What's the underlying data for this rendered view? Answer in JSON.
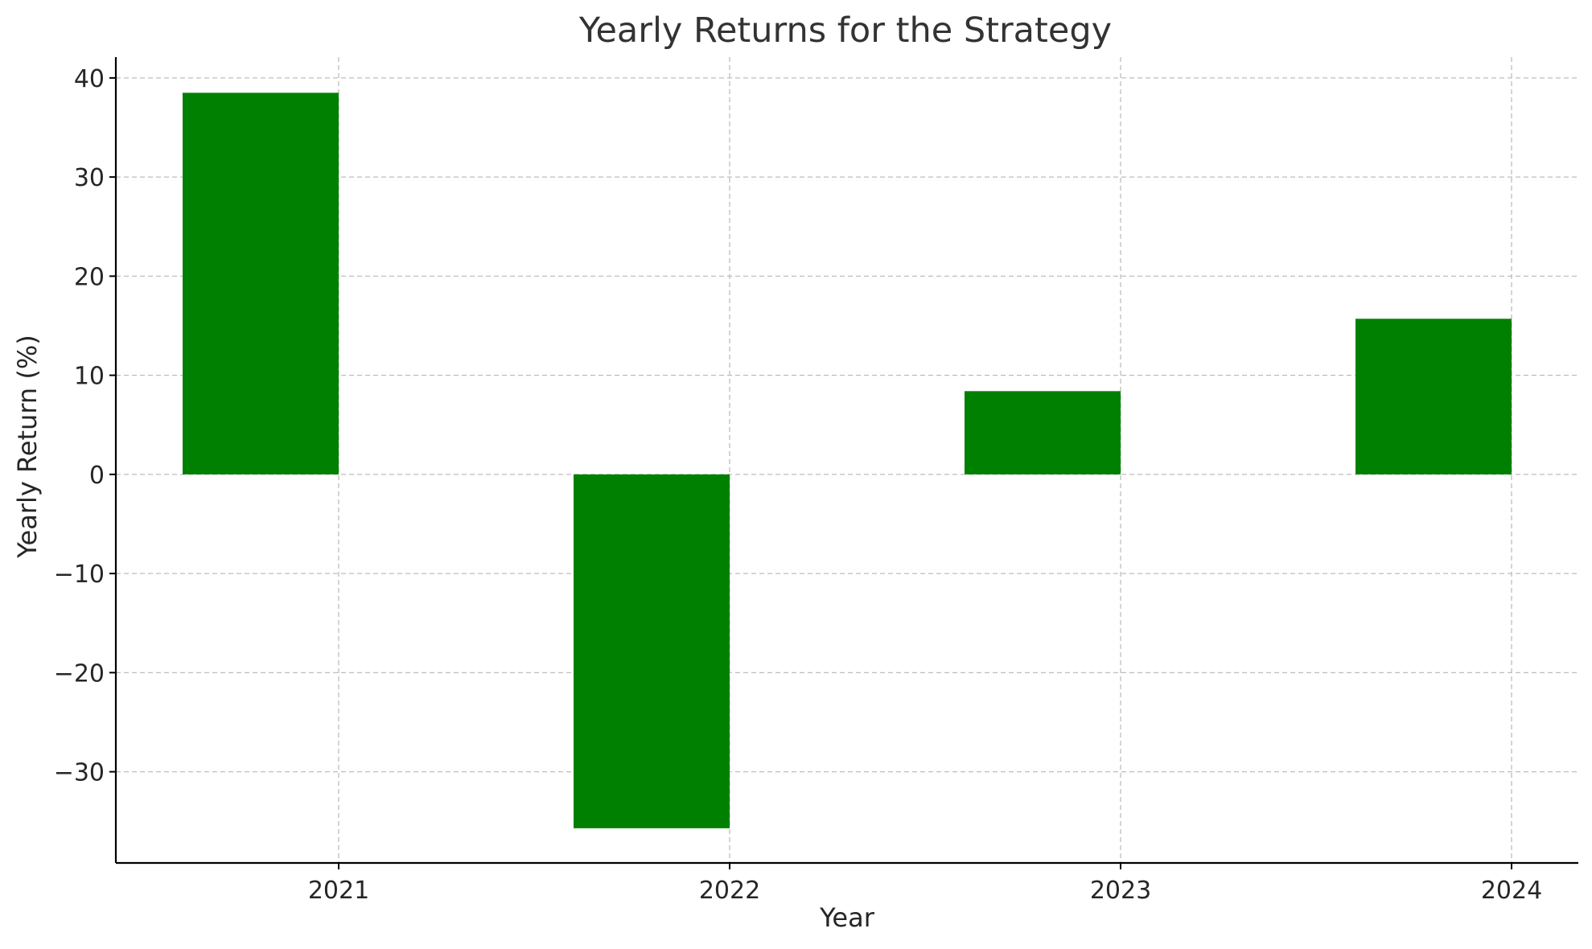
{
  "chart_data": {
    "type": "bar",
    "title": "Yearly Returns for the Strategy",
    "xlabel": "Year",
    "ylabel": "Yearly Return (%)",
    "categories": [
      "2021",
      "2022",
      "2023",
      "2024"
    ],
    "x_tick_labels": [
      "2021",
      "2022",
      "2023",
      "2024"
    ],
    "values": [
      38.5,
      -35.7,
      8.4,
      15.7
    ],
    "ylim": [
      -39.2,
      42.1
    ],
    "y_ticks": [
      -30,
      -20,
      -10,
      0,
      10,
      20,
      30,
      40
    ],
    "y_tick_labels": [
      "−30",
      "−20",
      "−10",
      "0",
      "10",
      "20",
      "30",
      "40"
    ],
    "bar_alignment": "edge",
    "bar_color": "#008000",
    "grid": true,
    "legend": "none",
    "spines": "left-bottom"
  }
}
